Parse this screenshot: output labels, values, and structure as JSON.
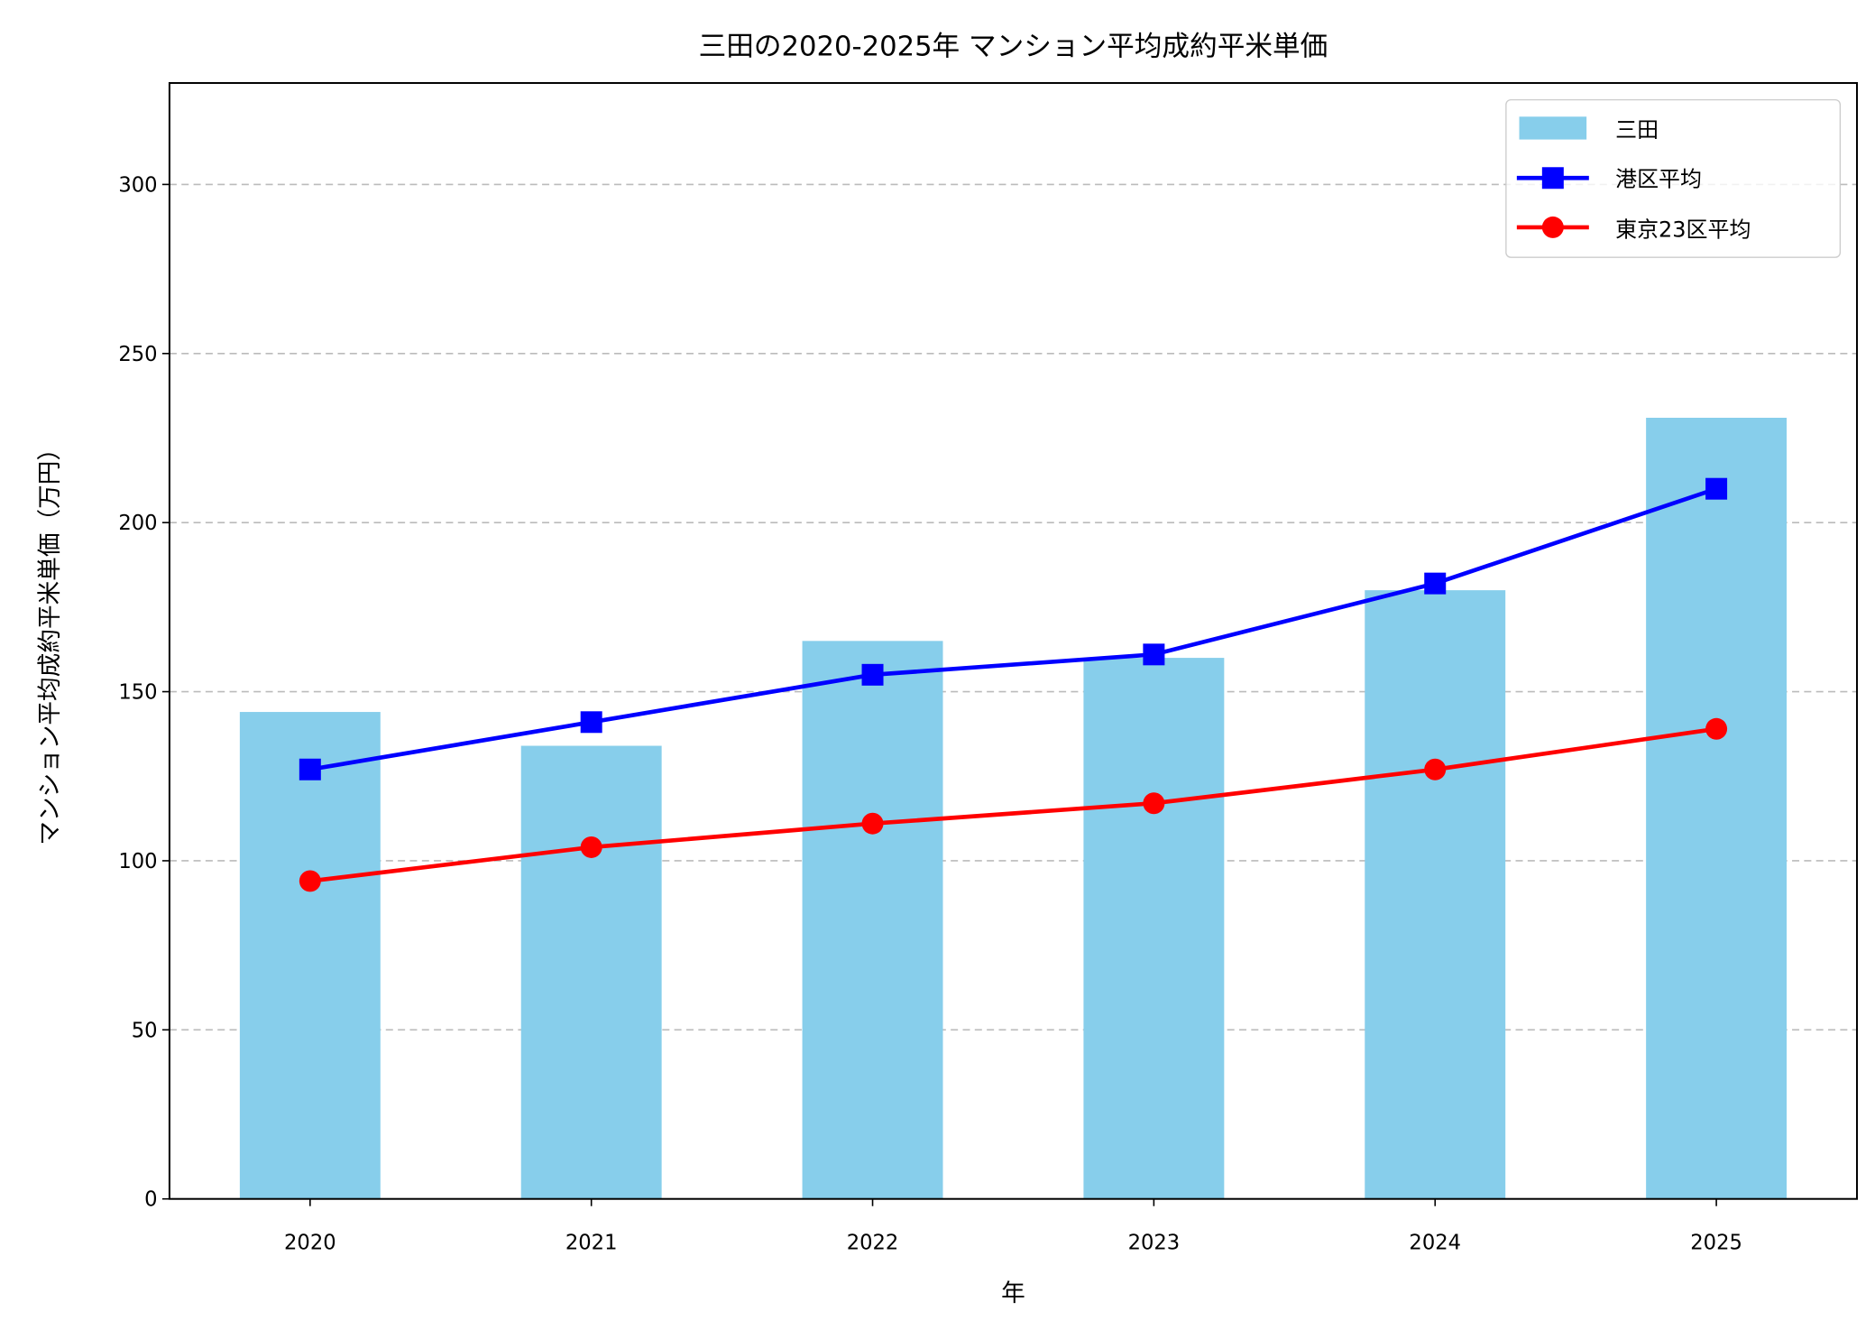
{
  "chart_data": {
    "type": "bar+line",
    "title": "三田の2020-2025年 マンション平均成約平米単価",
    "xlabel": "年",
    "ylabel": "マンション平均成約平米単価（万円）",
    "categories": [
      "2020",
      "2021",
      "2022",
      "2023",
      "2024",
      "2025"
    ],
    "ylim": [
      0,
      330
    ],
    "yticks": [
      0,
      50,
      100,
      150,
      200,
      250,
      300
    ],
    "grid": "y dashed",
    "legend_position": "top-right",
    "series": [
      {
        "name": "三田",
        "type": "bar",
        "color": "#87CEEB",
        "values": [
          144,
          134,
          165,
          160,
          180,
          231
        ]
      },
      {
        "name": "港区平均",
        "type": "line",
        "marker": "square",
        "color": "#0000FF",
        "values": [
          127,
          141,
          155,
          161,
          182,
          210
        ]
      },
      {
        "name": "東京23区平均",
        "type": "line",
        "marker": "circle",
        "color": "#FF0000",
        "values": [
          94,
          104,
          111,
          117,
          127,
          139
        ]
      }
    ]
  }
}
